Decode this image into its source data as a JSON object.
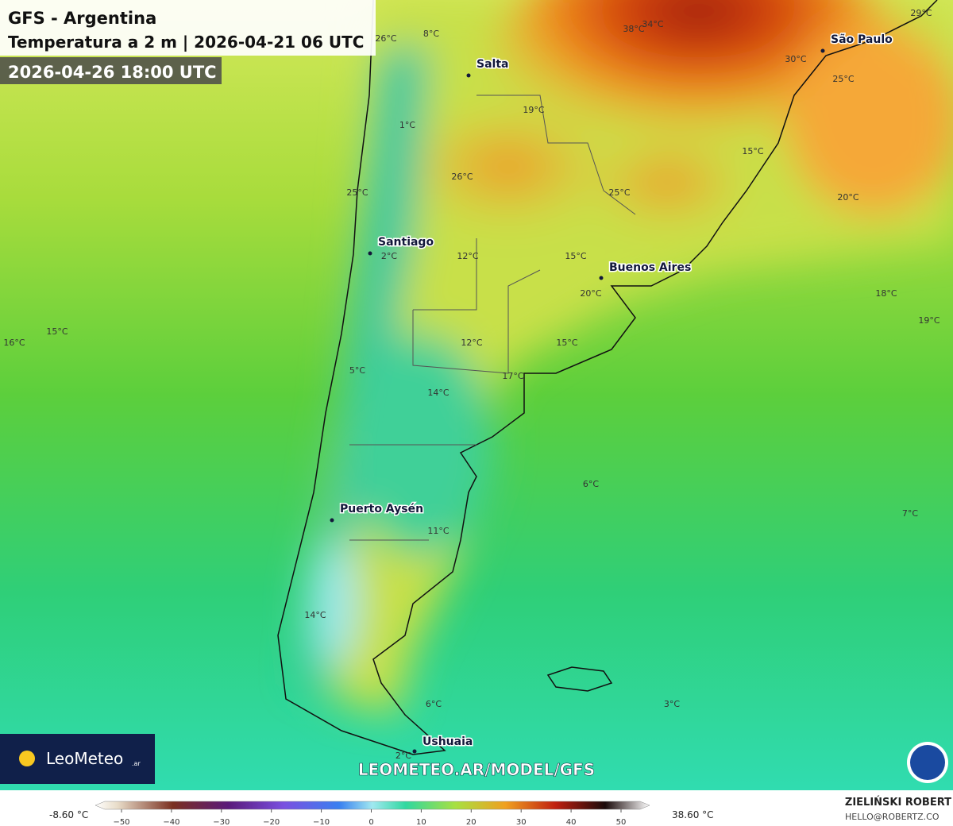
{
  "header": {
    "title": "GFS - Argentina",
    "subtitle": "Temperatura a 2 m | 2026-04-21 06 UTC",
    "valid_time": "2026-04-26 18:00 UTC"
  },
  "cities": [
    "Salta",
    "São Paulo",
    "Santiago",
    "Buenos Aires",
    "Puerto Aysén",
    "Ushuaia"
  ],
  "temperature_labels": [
    "29°C",
    "38°C",
    "34°C",
    "26°C",
    "8°C",
    "30°C",
    "25°C",
    "19°C",
    "1°C",
    "15°C",
    "26°C",
    "25°C",
    "25°C",
    "20°C",
    "12°C",
    "15°C",
    "2°C",
    "20°C",
    "18°C",
    "15°C",
    "16°C",
    "19°C",
    "12°C",
    "15°C",
    "5°C",
    "17°C",
    "14°C",
    "6°C",
    "7°C",
    "11°C",
    "14°C",
    "6°C",
    "3°C",
    "2°C"
  ],
  "branding": {
    "logo": "LeoMeteo",
    "logo_suffix": ".ar",
    "url": "LEOMETEO.AR/MODEL/GFS",
    "author": "ZIELIŃSKI ROBERT",
    "email": "HELLO@ROBERTZ.CO"
  },
  "colorbar": {
    "min_label": "-8.60 °C",
    "max_label": "38.60 °C",
    "ticks": [
      {
        "value": -50,
        "label": "−50"
      },
      {
        "value": -40,
        "label": "−40"
      },
      {
        "value": -30,
        "label": "−30"
      },
      {
        "value": -20,
        "label": "−20"
      },
      {
        "value": -10,
        "label": "−10"
      },
      0,
      10,
      20,
      30,
      40,
      50
    ]
  }
}
